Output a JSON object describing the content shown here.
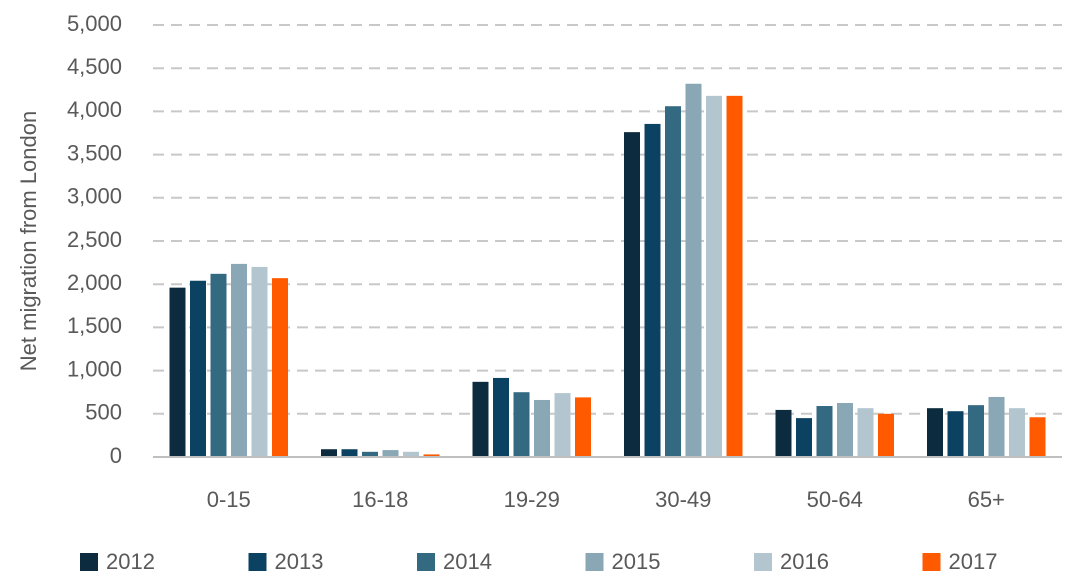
{
  "chart_data": {
    "type": "bar",
    "y_axis_label": "Net migration from London",
    "categories": [
      "0-15",
      "16-18",
      "19-29",
      "30-49",
      "50-64",
      "65+"
    ],
    "series": [
      {
        "name": "2012",
        "color": "#0d2b3e",
        "values": [
          1960,
          90,
          870,
          3760,
          545,
          565
        ]
      },
      {
        "name": "2013",
        "color": "#0b4262",
        "values": [
          2040,
          90,
          915,
          3855,
          450,
          530
        ]
      },
      {
        "name": "2014",
        "color": "#336a82",
        "values": [
          2120,
          60,
          750,
          4060,
          590,
          600
        ]
      },
      {
        "name": "2015",
        "color": "#8aa7b6",
        "values": [
          2235,
          80,
          660,
          4320,
          625,
          695
        ]
      },
      {
        "name": "2016",
        "color": "#b3c6cf",
        "values": [
          2200,
          60,
          740,
          4180,
          565,
          565
        ]
      },
      {
        "name": "2017",
        "color": "#ff5a00",
        "values": [
          2070,
          30,
          690,
          4180,
          500,
          460
        ]
      }
    ],
    "ylim": [
      0,
      5000
    ],
    "yticks": [
      0,
      500,
      {
        "value": 1000,
        "label": "1,000"
      },
      {
        "value": 1500,
        "label": "1,500"
      },
      {
        "value": 2000,
        "label": "2,000"
      },
      {
        "value": 2500,
        "label": "2,500"
      },
      {
        "value": 3000,
        "label": "3,000"
      },
      {
        "value": 3500,
        "label": "3,500"
      },
      {
        "value": 4000,
        "label": "4,000"
      },
      {
        "value": 4500,
        "label": "4,500"
      },
      {
        "value": 5000,
        "label": "5,000"
      }
    ],
    "grid": true,
    "legend": "bottom"
  }
}
